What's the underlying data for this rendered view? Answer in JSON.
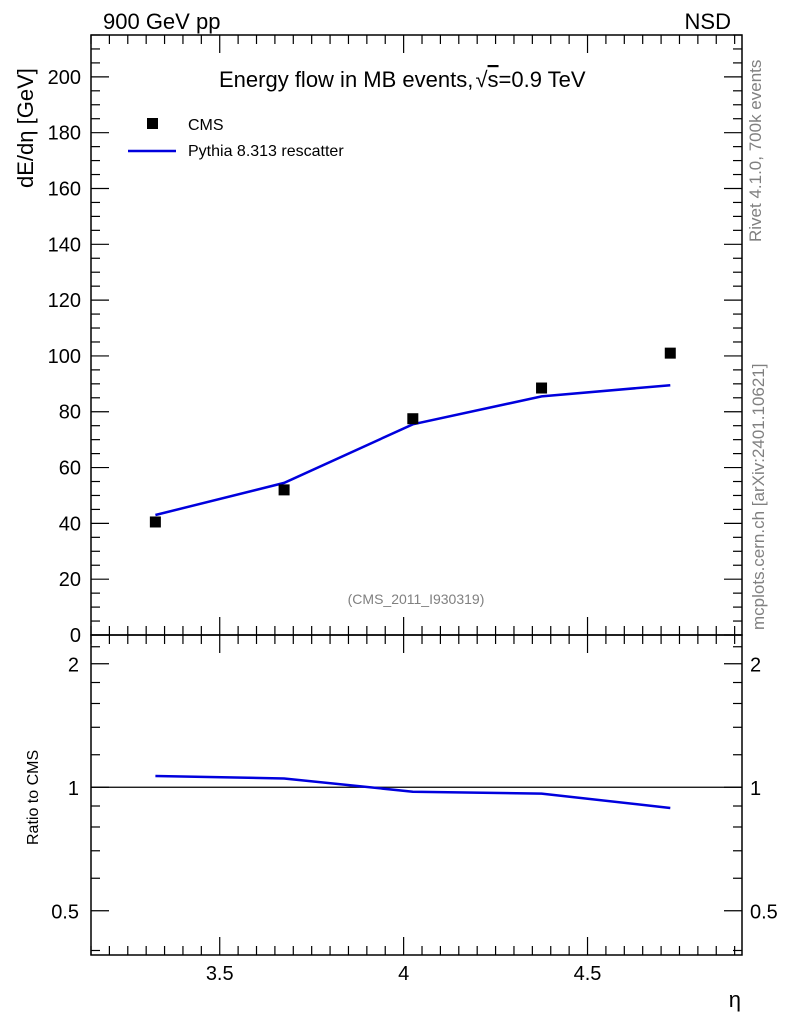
{
  "header": {
    "left": "900 GeV pp",
    "right": "NSD"
  },
  "side_labels": {
    "rivet": "Rivet 4.1.0,  700k events",
    "mcplots": "mcplots.cern.ch [arXiv:2401.10621]"
  },
  "colors": {
    "data": "#000000",
    "mc": "#0000dd",
    "frame": "#000000",
    "gray": "#808080"
  },
  "chart_data": [
    {
      "type": "scatter",
      "title": "Energy flow in MB events, ",
      "title_sqrt_symbol": "√",
      "title_sqrt_arg": "s",
      "title_suffix": "=0.9 TeV",
      "ylabel": "dE/dη [GeV]",
      "xlim": [
        3.15,
        4.92
      ],
      "ylim": [
        0,
        215
      ],
      "ytick_values": [
        0,
        20,
        40,
        60,
        80,
        100,
        120,
        140,
        160,
        180,
        200
      ],
      "ytick_labels": [
        "0",
        "20",
        "40",
        "60",
        "80",
        "100",
        "120",
        "140",
        "160",
        "180",
        "200"
      ],
      "annotation": "(CMS_2011_I930319)",
      "legend_position": "top-left",
      "series": [
        {
          "name": "CMS",
          "kind": "markers",
          "x": [
            3.325,
            3.675,
            4.025,
            4.375,
            4.725
          ],
          "y": [
            40.5,
            52.0,
            77.5,
            88.5,
            101.0
          ]
        },
        {
          "name": "Pythia 8.313 rescatter",
          "kind": "line",
          "x": [
            3.325,
            3.675,
            4.025,
            4.375,
            4.725
          ],
          "y": [
            43.0,
            54.5,
            75.5,
            85.5,
            89.5
          ]
        }
      ]
    },
    {
      "type": "line",
      "ylabel": "Ratio to CMS",
      "xlabel": "η",
      "xlim": [
        3.15,
        4.92
      ],
      "ylim": [
        0.39,
        2.35
      ],
      "scale": "log",
      "ytick_values": [
        0.5,
        1,
        2
      ],
      "ytick_labels": [
        "0.5",
        "1",
        "2"
      ],
      "xtick_values": [
        3.5,
        4,
        4.5
      ],
      "xtick_labels": [
        "3.5",
        "4",
        "4.5"
      ],
      "reference_line": 1,
      "series": [
        {
          "name": "Pythia 8.313 rescatter / CMS",
          "x": [
            3.325,
            3.675,
            4.025,
            4.375,
            4.725
          ],
          "y": [
            1.065,
            1.05,
            0.975,
            0.965,
            0.89
          ]
        }
      ]
    }
  ]
}
